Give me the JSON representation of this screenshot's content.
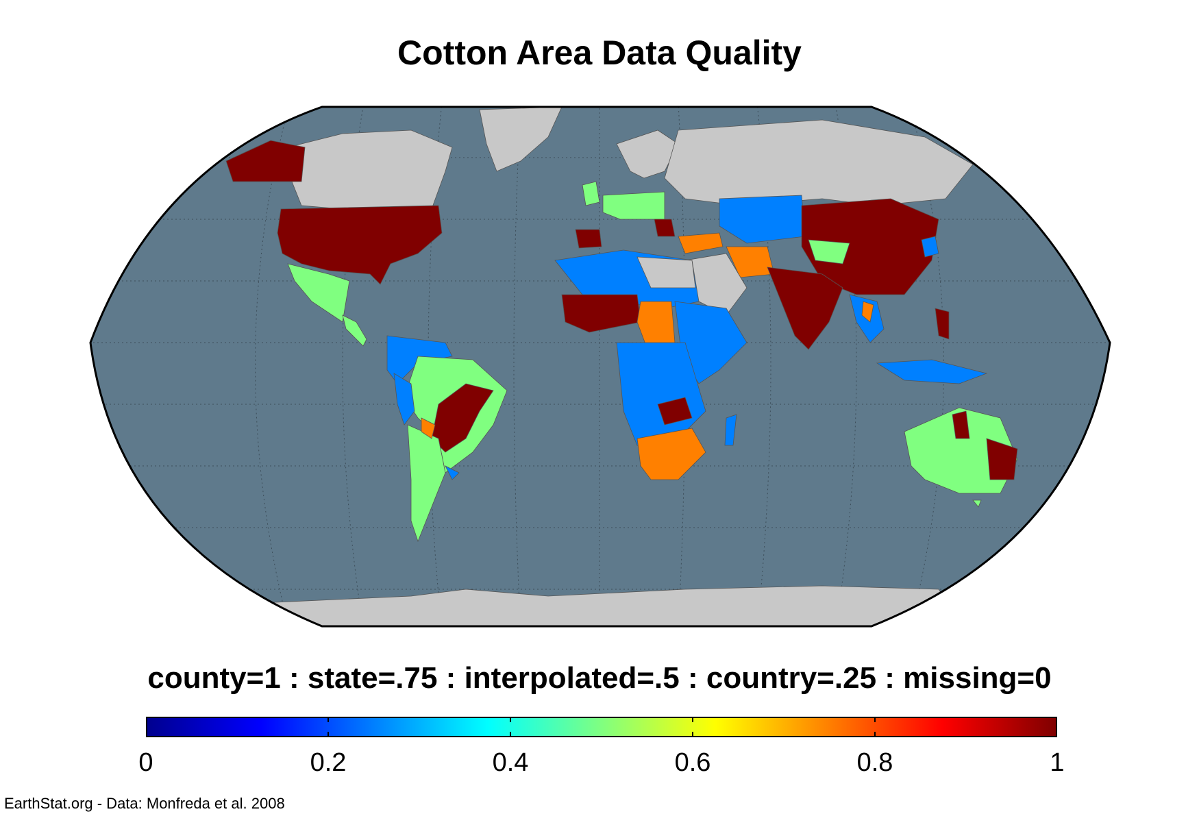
{
  "title": "Cotton Area Data Quality",
  "legend": {
    "caption": "county=1 : state=.75 : interpolated=.5 : country=.25 : missing=0",
    "ticks": [
      "0",
      "0.2",
      "0.4",
      "0.6",
      "0.8",
      "1"
    ],
    "range": [
      0,
      1
    ],
    "colormap": [
      "#00008f",
      "#0000ff",
      "#0080ff",
      "#00ffff",
      "#80ff80",
      "#ffff00",
      "#ff8000",
      "#ff0000",
      "#800000"
    ]
  },
  "credit": "EarthStat.org - Data: Monfreda et al. 2008",
  "colors": {
    "ocean": "#5f7a8c",
    "no_data_land": "#c8c8c8",
    "county": "#800000",
    "state": "#ff8000",
    "interpolated": "#80ff80",
    "country": "#0080ff"
  }
}
